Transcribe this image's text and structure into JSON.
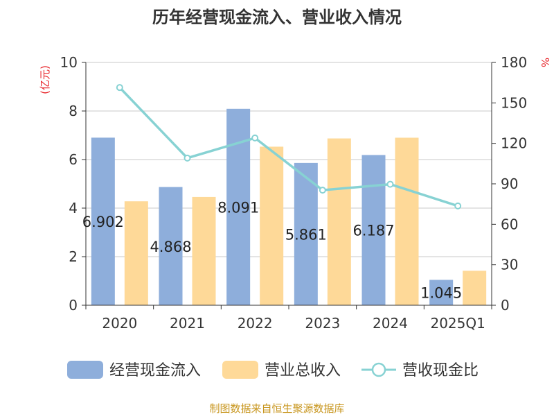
{
  "chart_data": {
    "type": "bar",
    "title": "历年经营现金流入、营业收入情况",
    "categories": [
      "2020",
      "2021",
      "2022",
      "2023",
      "2024",
      "2025Q1"
    ],
    "series": [
      {
        "name": "经营现金流入",
        "type": "bar",
        "axis": "left",
        "color": "#8eaedb",
        "values": [
          6.902,
          4.868,
          8.091,
          5.861,
          6.187,
          1.045
        ],
        "value_labels": [
          "6.902",
          "4.868",
          "8.091",
          "5.861",
          "6.187",
          "1.045"
        ]
      },
      {
        "name": "营业总收入",
        "type": "bar",
        "axis": "left",
        "color": "#fed998",
        "values": [
          4.28,
          4.46,
          6.53,
          6.87,
          6.9,
          1.42
        ]
      },
      {
        "name": "营收现金比",
        "type": "line",
        "axis": "right",
        "color": "#87d2d3",
        "values": [
          161.4,
          109.1,
          124.0,
          85.3,
          89.7,
          73.6
        ]
      }
    ],
    "y_left": {
      "label": "(亿元)",
      "min": 0,
      "max": 10,
      "ticks": [
        0,
        2,
        4,
        6,
        8,
        10
      ]
    },
    "y_right": {
      "label": "%",
      "min": 0,
      "max": 180,
      "ticks": [
        0,
        30,
        60,
        90,
        120,
        150,
        180
      ]
    },
    "grid": true,
    "legend_position": "bottom"
  },
  "footer": {
    "source": "制图数据来自恒生聚源数据库"
  }
}
